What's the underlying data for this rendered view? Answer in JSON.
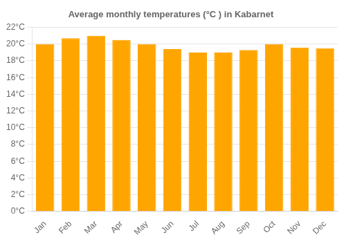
{
  "chart_data": {
    "type": "bar",
    "title": "Average monthly temperatures (°C ) in Kabarnet",
    "categories": [
      "Jan",
      "Feb",
      "Mar",
      "Apr",
      "May",
      "Jun",
      "Jul",
      "Aug",
      "Sep",
      "Oct",
      "Nov",
      "Dec"
    ],
    "values": [
      20.0,
      20.7,
      21.0,
      20.5,
      20.0,
      19.4,
      19.0,
      19.0,
      19.3,
      20.0,
      19.6,
      19.5
    ],
    "color": "#FFA500",
    "ylim": [
      0,
      22
    ],
    "yticks": [
      {
        "value": 0,
        "label": "0°C"
      },
      {
        "value": 2,
        "label": "2°C"
      },
      {
        "value": 4,
        "label": "4°C"
      },
      {
        "value": 6,
        "label": "6°C"
      },
      {
        "value": 8,
        "label": "8°C"
      },
      {
        "value": 10,
        "label": "10°C"
      },
      {
        "value": 12,
        "label": "12°C"
      },
      {
        "value": 14,
        "label": "14°C"
      },
      {
        "value": 16,
        "label": "16°C"
      },
      {
        "value": 18,
        "label": "18°C"
      },
      {
        "value": 20,
        "label": "20°C"
      },
      {
        "value": 22,
        "label": "22°C"
      }
    ],
    "grid": true
  }
}
